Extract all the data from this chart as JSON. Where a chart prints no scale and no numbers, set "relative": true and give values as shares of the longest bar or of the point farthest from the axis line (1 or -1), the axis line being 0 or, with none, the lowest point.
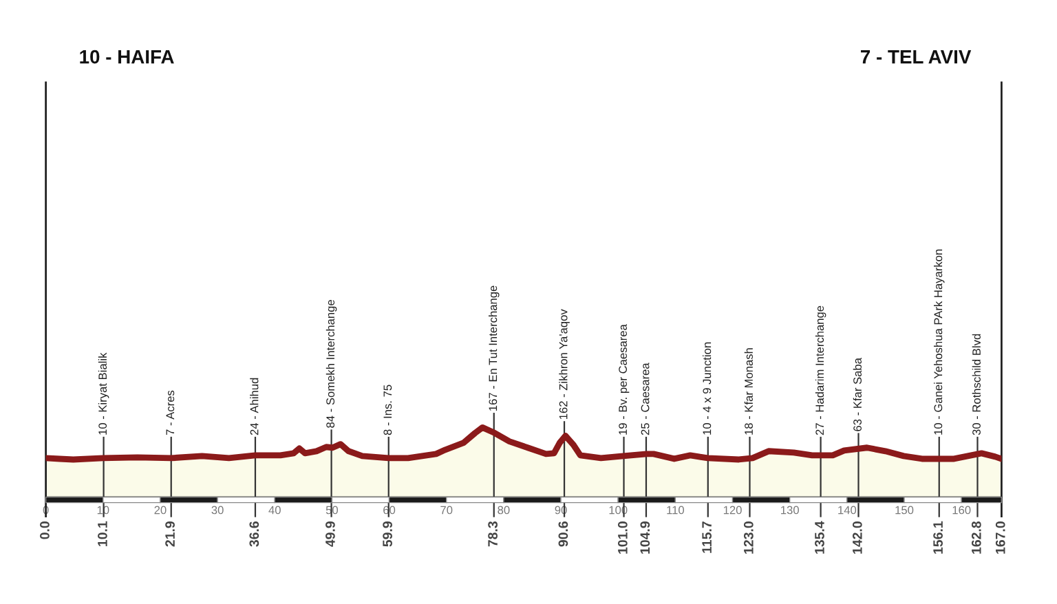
{
  "chart_data": {
    "type": "area",
    "relative": true,
    "tick_labels": "x",
    "xlim": [
      0,
      167
    ],
    "xticks": [
      0,
      10,
      20,
      30,
      40,
      50,
      60,
      70,
      80,
      90,
      100,
      110,
      120,
      130,
      140,
      150,
      160
    ],
    "x2lim": [
      0,
      167
    ],
    "x2ticks": [
      {
        "value": 0.0,
        "label": "0.0"
      },
      {
        "value": 10.1,
        "label": "10.1"
      },
      {
        "value": 21.9,
        "label": "21.9"
      },
      {
        "value": 36.6,
        "label": "36.6"
      },
      {
        "value": 49.9,
        "label": "49.9"
      },
      {
        "value": 59.9,
        "label": "59.9"
      },
      {
        "value": 78.3,
        "label": "78.3"
      },
      {
        "value": 90.6,
        "label": "90.6"
      },
      {
        "value": 101.0,
        "label": "101.0"
      },
      {
        "value": 104.9,
        "label": "104.9"
      },
      {
        "value": 115.7,
        "label": "115.7"
      },
      {
        "value": 123.0,
        "label": "123.0"
      },
      {
        "value": 135.4,
        "label": "135.4"
      },
      {
        "value": 142.0,
        "label": "142.0"
      },
      {
        "value": 156.1,
        "label": "156.1"
      },
      {
        "value": 162.8,
        "label": "162.8"
      },
      {
        "value": 167.0,
        "label": "167.0"
      }
    ],
    "series": [
      {
        "color": "#8b1a1a",
        "x": [
          0,
          2.4,
          4.8,
          10,
          16,
          21.9,
          27.3,
          32,
          36.6,
          41,
          43.3,
          44.3,
          45.3,
          47.3,
          49,
          50.1,
          51.5,
          52.9,
          55.3,
          59.9,
          63.3,
          68.2,
          69.8,
          73,
          75,
          76.3,
          78.2,
          81,
          84.2,
          87.4,
          88.8,
          89.8,
          90.8,
          92.2,
          93.4,
          97,
          100.9,
          105,
          106.2,
          109.8,
          112.6,
          115.7,
          121.1,
          123.5,
          126.3,
          130.7,
          133.9,
          137.5,
          139.5,
          143.5,
          146.7,
          149.9,
          153.1,
          158.7,
          161.1,
          163.5,
          165.9,
          167
        ],
        "values": [
          0.56,
          0.55,
          0.54,
          0.56,
          0.57,
          0.56,
          0.59,
          0.56,
          0.6,
          0.6,
          0.63,
          0.7,
          0.63,
          0.66,
          0.72,
          0.71,
          0.76,
          0.66,
          0.59,
          0.56,
          0.56,
          0.62,
          0.68,
          0.78,
          0.92,
          1.0,
          0.93,
          0.8,
          0.71,
          0.62,
          0.63,
          0.78,
          0.88,
          0.75,
          0.6,
          0.56,
          0.59,
          0.62,
          0.62,
          0.55,
          0.6,
          0.56,
          0.54,
          0.56,
          0.66,
          0.64,
          0.6,
          0.6,
          0.67,
          0.71,
          0.66,
          0.59,
          0.55,
          0.55,
          0.59,
          0.63,
          0.58,
          0.55
        ]
      }
    ],
    "ref_lines": [
      {
        "axis": "x",
        "value": 0.0,
        "label": "10 - HAIFA"
      },
      {
        "axis": "x",
        "value": 10.1,
        "label": "10 - Kiryat Bialik"
      },
      {
        "axis": "x",
        "value": 21.9,
        "label": "7 - Acres"
      },
      {
        "axis": "x",
        "value": 36.6,
        "label": "24 - Ahihud"
      },
      {
        "axis": "x",
        "value": 49.9,
        "label": "84 - Somekh Interchange"
      },
      {
        "axis": "x",
        "value": 59.9,
        "label": "8 - Ins. 75"
      },
      {
        "axis": "x",
        "value": 78.3,
        "label": "167 - En Tut Interchange"
      },
      {
        "axis": "x",
        "value": 90.6,
        "label": "162 - Zikhron Ya'aqov"
      },
      {
        "axis": "x",
        "value": 101.0,
        "label": "19 - Bv. per Caesarea"
      },
      {
        "axis": "x",
        "value": 104.9,
        "label": "25 - Caesarea"
      },
      {
        "axis": "x",
        "value": 115.7,
        "label": "10 - 4 x 9 Junction"
      },
      {
        "axis": "x",
        "value": 123.0,
        "label": "18 - Kfar Monash"
      },
      {
        "axis": "x",
        "value": 135.4,
        "label": "27 - Hadarim Interchange"
      },
      {
        "axis": "x",
        "value": 142.0,
        "label": "63 - Kfar Saba"
      },
      {
        "axis": "x",
        "value": 156.1,
        "label": "10 - Ganei Yehoshua PArk Hayarkon"
      },
      {
        "axis": "x",
        "value": 162.8,
        "label": "30 - Rothschild Blvd"
      },
      {
        "axis": "x",
        "value": 167.0,
        "label": "7 - TEL AVIV"
      }
    ]
  }
}
